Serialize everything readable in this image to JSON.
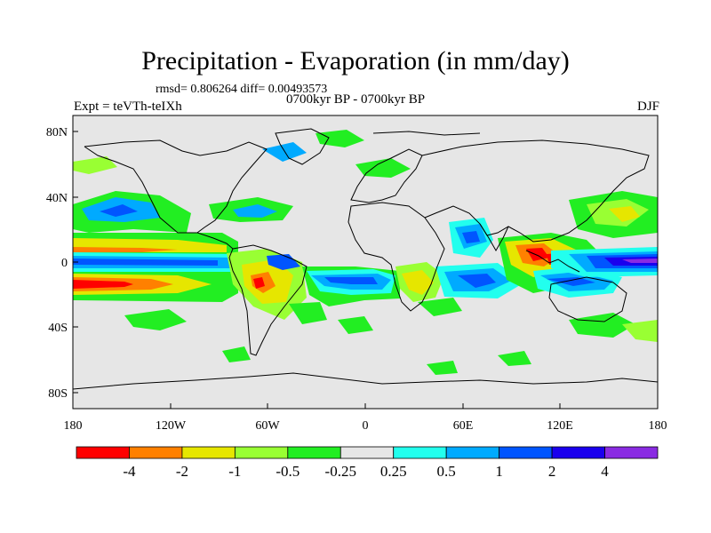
{
  "title": "Precipitation - Evaporation (in mm/day)",
  "stats": "rmsd= 0.806264 diff= 0.00493573",
  "experiment": "Expt = teVTh-teIXh",
  "period": "0700kyr BP - 0700kyr BP",
  "season": "DJF",
  "lat_labels": [
    "80N",
    "40N",
    "0",
    "40S",
    "80S"
  ],
  "lon_labels": [
    "180",
    "120W",
    "60W",
    "0",
    "60E",
    "120E",
    "180"
  ],
  "colorbar": {
    "labels": [
      "-4",
      "-2",
      "-1",
      "-0.5",
      "-0.25",
      "0.25",
      "0.5",
      "1",
      "2",
      "4"
    ],
    "colors": [
      "#ff0000",
      "#ff8000",
      "#e6e600",
      "#99ff33",
      "#22ee22",
      "#e6e6e6",
      "#22ffee",
      "#00aaff",
      "#0055ff",
      "#1a00ee",
      "#8a2be2"
    ]
  },
  "map_colors": {
    "background": "#e6e6e6",
    "coast": "#000000"
  }
}
